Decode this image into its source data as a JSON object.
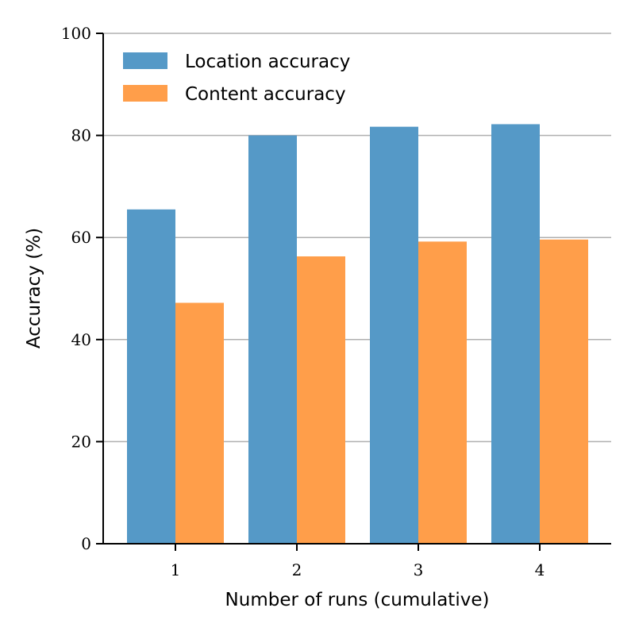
{
  "chart_data": {
    "type": "bar",
    "categories": [
      "1",
      "2",
      "3",
      "4"
    ],
    "series": [
      {
        "name": "Location accuracy",
        "values": [
          65.5,
          80.0,
          81.7,
          82.2
        ],
        "color": "#5599c7"
      },
      {
        "name": "Content accuracy",
        "values": [
          47.2,
          56.3,
          59.2,
          59.6
        ],
        "color": "#ff9e4a"
      }
    ],
    "xlabel": "Number of runs (cumulative)",
    "ylabel": "Accuracy (%)",
    "ylim": [
      0,
      100
    ],
    "yticks": [
      "0",
      "20",
      "40",
      "60",
      "80",
      "100"
    ],
    "grid": true,
    "legend_position": "top-left"
  }
}
